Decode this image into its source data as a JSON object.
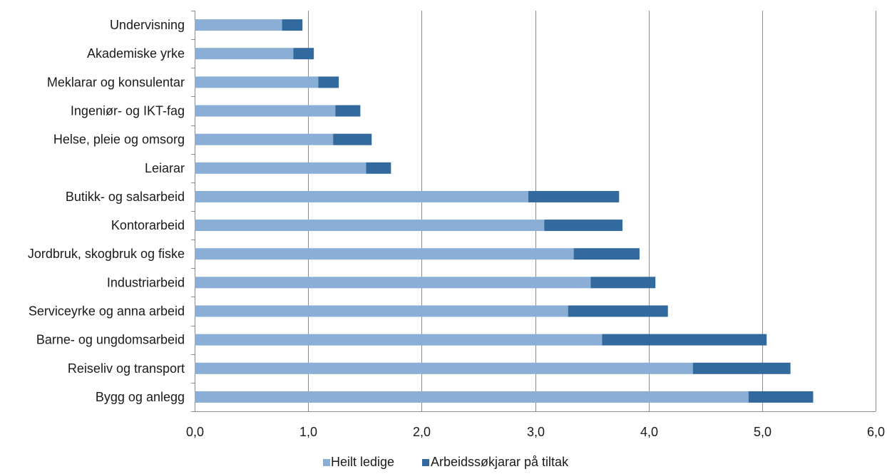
{
  "chart_data": {
    "type": "bar",
    "orientation": "horizontal",
    "stacked": true,
    "categories": [
      "Undervisning",
      "Akademiske yrke",
      "Meklarar og konsulentar",
      "Ingeniør- og IKT-fag",
      "Helse, pleie og omsorg",
      "Leiarar",
      "Butikk- og salsarbeid",
      "Kontorarbeid",
      "Jordbruk, skogbruk og fiske",
      "Industriarbeid",
      "Serviceyrke og anna arbeid",
      "Barne- og ungdomsarbeid",
      "Reiseliv og transport",
      "Bygg og anlegg"
    ],
    "series": [
      {
        "name": "Heilt ledige",
        "color": "#8aaed6",
        "values": [
          0.77,
          0.87,
          1.09,
          1.24,
          1.22,
          1.51,
          2.94,
          3.08,
          3.34,
          3.49,
          3.29,
          3.59,
          4.39,
          4.88
        ]
      },
      {
        "name": "Arbeidssøkjarar på tiltak",
        "color": "#336a9d",
        "values": [
          0.18,
          0.18,
          0.18,
          0.22,
          0.34,
          0.22,
          0.8,
          0.69,
          0.58,
          0.57,
          0.88,
          1.45,
          0.86,
          0.57
        ]
      }
    ],
    "xlim": [
      0,
      6
    ],
    "xticks": [
      "0,0",
      "1,0",
      "2,0",
      "3,0",
      "4,0",
      "5,0",
      "6,0"
    ],
    "grid": "vertical",
    "legend_position": "bottom-center",
    "title": "",
    "xlabel": "",
    "ylabel": ""
  }
}
